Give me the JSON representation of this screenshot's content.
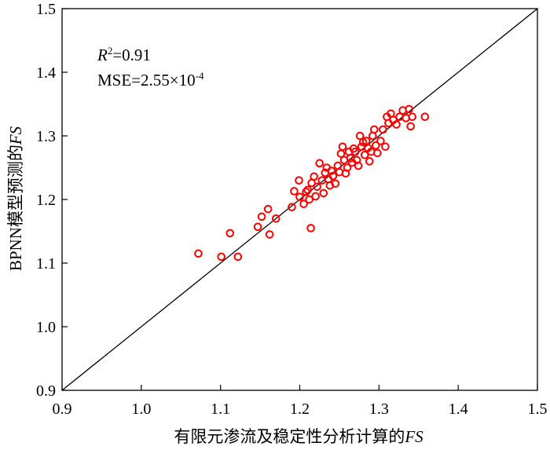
{
  "chart_data": {
    "type": "scatter",
    "xlabel": "有限元渗流及稳定性分析计算的",
    "xlabel_italic": "FS",
    "ylabel": "BPNN模型预测的",
    "ylabel_italic": "FS",
    "xlim": [
      0.9,
      1.5
    ],
    "ylim": [
      0.9,
      1.5
    ],
    "xticks": [
      "0.9",
      "1.0",
      "1.1",
      "1.2",
      "1.3",
      "1.4",
      "1.5"
    ],
    "yticks": [
      "0.9",
      "1.0",
      "1.1",
      "1.2",
      "1.3",
      "1.4",
      "1.5"
    ],
    "grid": false,
    "reference_line": "y = x",
    "marker_color": "#ff0000",
    "annotations": {
      "r2_symbol": "R",
      "r2_sup": "2",
      "r2_value": "=0.91",
      "mse_prefix": "MSE=2.55×10",
      "mse_sup": "-4"
    },
    "points": [
      [
        1.072,
        1.115
      ],
      [
        1.101,
        1.11
      ],
      [
        1.112,
        1.147
      ],
      [
        1.122,
        1.11
      ],
      [
        1.147,
        1.157
      ],
      [
        1.152,
        1.173
      ],
      [
        1.16,
        1.185
      ],
      [
        1.162,
        1.145
      ],
      [
        1.17,
        1.17
      ],
      [
        1.19,
        1.188
      ],
      [
        1.193,
        1.213
      ],
      [
        1.199,
        1.23
      ],
      [
        1.2,
        1.204
      ],
      [
        1.205,
        1.193
      ],
      [
        1.208,
        1.212
      ],
      [
        1.21,
        1.215
      ],
      [
        1.212,
        1.2
      ],
      [
        1.214,
        1.155
      ],
      [
        1.215,
        1.226
      ],
      [
        1.218,
        1.236
      ],
      [
        1.22,
        1.205
      ],
      [
        1.222,
        1.22
      ],
      [
        1.225,
        1.257
      ],
      [
        1.228,
        1.23
      ],
      [
        1.23,
        1.21
      ],
      [
        1.232,
        1.242
      ],
      [
        1.234,
        1.25
      ],
      [
        1.236,
        1.232
      ],
      [
        1.238,
        1.222
      ],
      [
        1.24,
        1.245
      ],
      [
        1.242,
        1.237
      ],
      [
        1.245,
        1.225
      ],
      [
        1.248,
        1.253
      ],
      [
        1.25,
        1.243
      ],
      [
        1.252,
        1.272
      ],
      [
        1.254,
        1.283
      ],
      [
        1.256,
        1.262
      ],
      [
        1.258,
        1.241
      ],
      [
        1.26,
        1.25
      ],
      [
        1.262,
        1.275
      ],
      [
        1.264,
        1.265
      ],
      [
        1.266,
        1.258
      ],
      [
        1.268,
        1.28
      ],
      [
        1.27,
        1.275
      ],
      [
        1.272,
        1.262
      ],
      [
        1.274,
        1.253
      ],
      [
        1.276,
        1.3
      ],
      [
        1.278,
        1.283
      ],
      [
        1.28,
        1.29
      ],
      [
        1.282,
        1.27
      ],
      [
        1.284,
        1.292
      ],
      [
        1.286,
        1.281
      ],
      [
        1.288,
        1.26
      ],
      [
        1.29,
        1.275
      ],
      [
        1.292,
        1.3
      ],
      [
        1.294,
        1.31
      ],
      [
        1.296,
        1.285
      ],
      [
        1.298,
        1.273
      ],
      [
        1.302,
        1.292
      ],
      [
        1.305,
        1.31
      ],
      [
        1.308,
        1.283
      ],
      [
        1.31,
        1.33
      ],
      [
        1.312,
        1.32
      ],
      [
        1.315,
        1.335
      ],
      [
        1.318,
        1.325
      ],
      [
        1.322,
        1.318
      ],
      [
        1.326,
        1.33
      ],
      [
        1.33,
        1.34
      ],
      [
        1.334,
        1.328
      ],
      [
        1.338,
        1.342
      ],
      [
        1.34,
        1.315
      ],
      [
        1.342,
        1.33
      ],
      [
        1.358,
        1.33
      ]
    ]
  }
}
